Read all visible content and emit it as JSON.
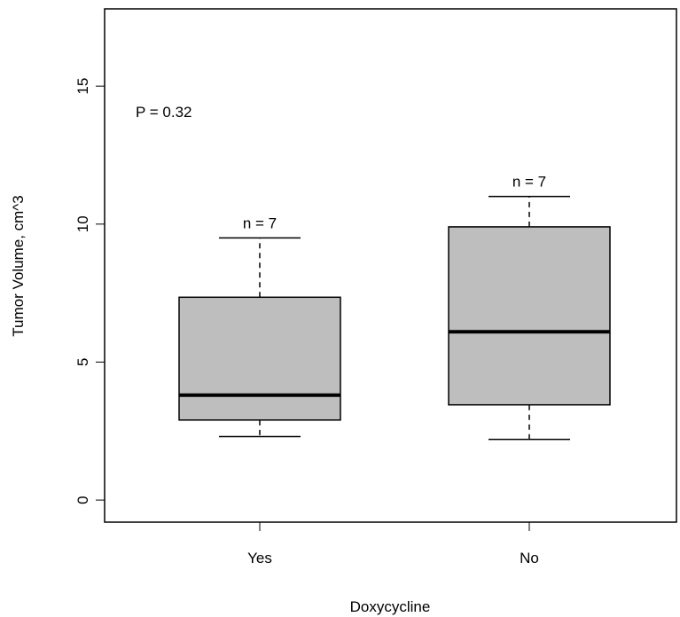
{
  "chart_data": {
    "type": "boxplot",
    "xlabel": "Doxycycline",
    "ylabel": "Tumor Volume, cm^3",
    "ylim": [
      -0.8,
      17.8
    ],
    "yticks": [
      0,
      5,
      10,
      15
    ],
    "categories": [
      "Yes",
      "No"
    ],
    "boxes": [
      {
        "category": "Yes",
        "min": 2.3,
        "q1": 2.9,
        "median": 3.8,
        "q3": 7.35,
        "max": 9.5,
        "n_label": "n = 7"
      },
      {
        "category": "No",
        "min": 2.2,
        "q1": 3.45,
        "median": 6.1,
        "q3": 9.9,
        "max": 11.0,
        "n_label": "n = 7"
      }
    ],
    "annotation": "P = 0.32",
    "box_fill": "#bebebe",
    "grid": false
  }
}
